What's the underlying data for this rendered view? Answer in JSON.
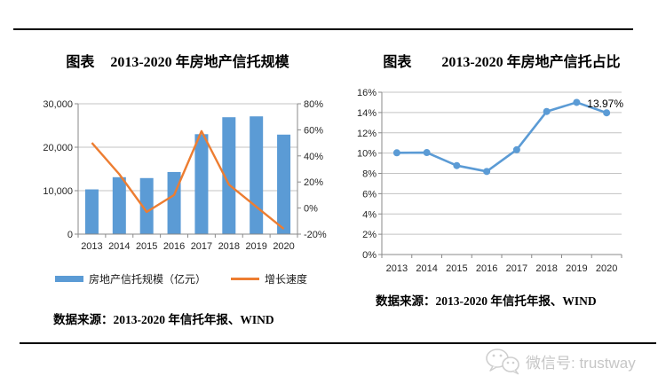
{
  "left_chart": {
    "title_prefix": "图表",
    "title": "2013-2020 年房地产信托规模",
    "legend": [
      {
        "label": "房地产信托规模（亿元）",
        "swatch": "bar",
        "color": "#5B9BD5"
      },
      {
        "label": "增长速度",
        "swatch": "line",
        "color": "#ED7D31"
      }
    ],
    "source": "数据来源：2013-2020 年信托年报、WIND"
  },
  "right_chart": {
    "title_prefix": "图表",
    "title": "2013-2020 年房地产信托占比",
    "source": "数据来源：2013-2020 年信托年报、WIND"
  },
  "footer": {
    "wechat_label": "微信号: trustway"
  },
  "colors": {
    "bar_blue": "#5B9BD5",
    "growth_orange": "#ED7D31",
    "ratio_line_blue": "#5B9BD5",
    "gridline_gray": "#c3c3c3",
    "wechat_gray": "#c6c6c6"
  },
  "chart_data": [
    {
      "type": "bar",
      "title": "2013-2020 年房地产信托规模",
      "categories": [
        "2013",
        "2014",
        "2015",
        "2016",
        "2017",
        "2018",
        "2019",
        "2020"
      ],
      "series": [
        {
          "name": "房地产信托规模（亿元）",
          "type": "bar",
          "axis": "left",
          "color": "#5B9BD5",
          "values": [
            10300,
            13100,
            12900,
            14300,
            23000,
            26900,
            27100,
            22900
          ]
        },
        {
          "name": "增长速度",
          "type": "line",
          "axis": "right",
          "color": "#ED7D31",
          "values": [
            50,
            26,
            -3,
            10,
            59,
            18,
            1,
            -16
          ]
        }
      ],
      "left_axis": {
        "min": 0,
        "max": 30000,
        "ticks": [
          {
            "v": 0,
            "label": "0"
          },
          {
            "v": 10000,
            "label": "10,000"
          },
          {
            "v": 20000,
            "label": "20,000"
          },
          {
            "v": 30000,
            "label": "30,000"
          }
        ]
      },
      "right_axis": {
        "min": -20,
        "max": 80,
        "ticks": [
          {
            "v": -20,
            "label": "-20%"
          },
          {
            "v": 0,
            "label": "0%"
          },
          {
            "v": 20,
            "label": "20%"
          },
          {
            "v": 40,
            "label": "40%"
          },
          {
            "v": 60,
            "label": "60%"
          },
          {
            "v": 80,
            "label": "80%"
          }
        ]
      },
      "grid": true,
      "legend_position": "bottom"
    },
    {
      "type": "line",
      "title": "2013-2020 年房地产信托占比",
      "categories": [
        "2013",
        "2014",
        "2015",
        "2016",
        "2017",
        "2018",
        "2019",
        "2020"
      ],
      "series": [
        {
          "name": "房地产信托占比",
          "color": "#5B9BD5",
          "marker": "circle",
          "values": [
            10.03,
            10.05,
            8.77,
            8.19,
            10.33,
            14.1,
            15.0,
            13.97
          ]
        }
      ],
      "y_axis": {
        "min": 0,
        "max": 16,
        "ticks": [
          {
            "v": 0,
            "label": "0%"
          },
          {
            "v": 2,
            "label": "2%"
          },
          {
            "v": 4,
            "label": "4%"
          },
          {
            "v": 6,
            "label": "6%"
          },
          {
            "v": 8,
            "label": "8%"
          },
          {
            "v": 10,
            "label": "10%"
          },
          {
            "v": 12,
            "label": "12%"
          },
          {
            "v": 14,
            "label": "14%"
          },
          {
            "v": 16,
            "label": "16%"
          }
        ]
      },
      "annotations": [
        {
          "text": "13.97%",
          "x_index": 7
        }
      ],
      "grid": true
    }
  ]
}
